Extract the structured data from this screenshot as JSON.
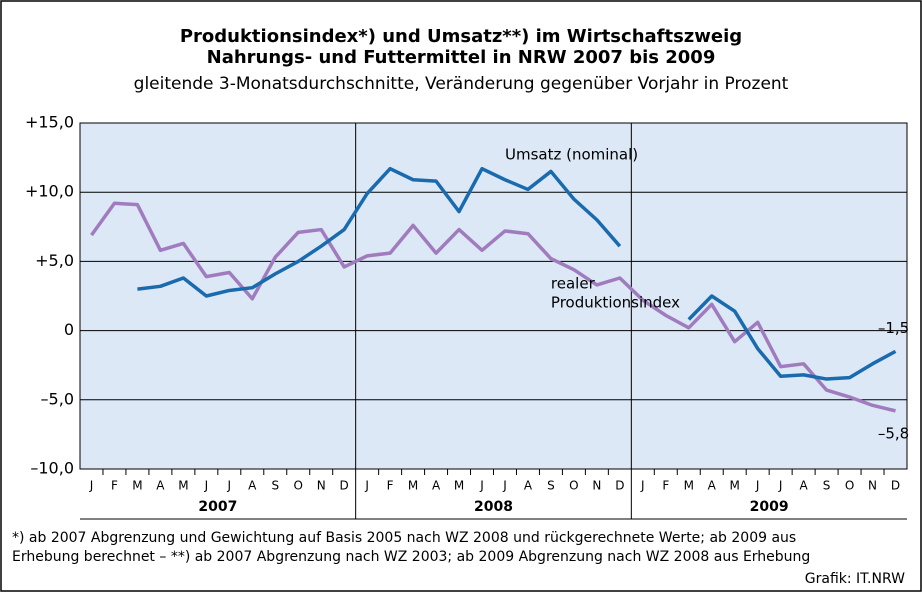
{
  "chart_data": {
    "type": "line",
    "title": [
      "Produktionsindex*) und Umsatz**) im Wirtschaftszweig",
      "Nahrungs- und Futtermittel in NRW 2007 bis 2009"
    ],
    "subtitle": "gleitende 3-Monatsdurchschnitte, Veränderung gegenüber Vorjahr in Prozent",
    "categories": [
      "J",
      "F",
      "M",
      "A",
      "M",
      "J",
      "J",
      "A",
      "S",
      "O",
      "N",
      "D",
      "J",
      "F",
      "M",
      "A",
      "M",
      "J",
      "J",
      "A",
      "S",
      "O",
      "N",
      "D",
      "J",
      "F",
      "M",
      "A",
      "M",
      "J",
      "J",
      "A",
      "S",
      "O",
      "N",
      "D"
    ],
    "years": [
      "2007",
      "2008",
      "2009"
    ],
    "series": [
      {
        "name": "Umsatz (nominal)",
        "color": "#1a6aae",
        "values": [
          null,
          null,
          3.0,
          3.2,
          3.8,
          2.5,
          2.9,
          3.1,
          4.1,
          5.0,
          6.1,
          7.3,
          9.9,
          11.7,
          10.9,
          10.8,
          8.6,
          11.7,
          10.9,
          10.2,
          11.5,
          9.5,
          8.0,
          6.1,
          null,
          null,
          0.8,
          2.5,
          1.4,
          -1.3,
          -3.3,
          -3.2,
          -3.5,
          -3.4,
          -2.4,
          -1.5
        ],
        "value_labels": [
          null,
          null,
          null,
          null,
          null,
          null,
          null,
          null,
          null,
          null,
          null,
          null,
          null,
          null,
          null,
          null,
          null,
          null,
          null,
          null,
          null,
          null,
          null,
          null,
          null,
          null,
          null,
          null,
          null,
          null,
          null,
          null,
          null,
          null,
          null,
          "–1,5"
        ]
      },
      {
        "name": [
          "realer",
          "Produktionsindex"
        ],
        "color": "#a07cbf",
        "values": [
          6.9,
          9.2,
          9.1,
          5.8,
          6.3,
          3.9,
          4.2,
          2.3,
          5.3,
          7.1,
          7.3,
          4.6,
          5.4,
          5.6,
          7.6,
          5.6,
          7.3,
          5.8,
          7.2,
          7.0,
          5.2,
          4.4,
          3.3,
          3.8,
          2.2,
          1.1,
          0.2,
          1.9,
          -0.8,
          0.6,
          -2.6,
          -2.4,
          -4.3,
          -4.8,
          -5.4,
          -5.8
        ],
        "value_labels": [
          null,
          null,
          null,
          null,
          null,
          null,
          null,
          null,
          null,
          null,
          null,
          null,
          null,
          null,
          null,
          null,
          null,
          null,
          null,
          null,
          null,
          null,
          null,
          null,
          null,
          null,
          null,
          null,
          null,
          null,
          null,
          null,
          null,
          null,
          null,
          "–5,8"
        ]
      }
    ],
    "ylim": [
      -10,
      15
    ],
    "yticks": [
      {
        "value": -10,
        "label": "–10,0"
      },
      {
        "value": -5,
        "label": "–5,0"
      },
      0,
      {
        "value": 5,
        "label": "+5,0"
      },
      {
        "value": 10,
        "label": "+10,0"
      },
      {
        "value": 15,
        "label": "+15,0"
      }
    ],
    "grid": true,
    "background": "#dce8f5",
    "footnote": [
      "*) ab 2007 Abgrenzung und Gewichtung auf Basis 2005 nach WZ 2008 und rückgerechnete Werte; ab 2009 aus",
      "Erhebung berechnet – **) ab 2007 Abgrenzung nach WZ 2003; ab 2009 Abgrenzung nach WZ 2008 aus Erhebung"
    ],
    "credit": "Grafik: IT.NRW"
  }
}
